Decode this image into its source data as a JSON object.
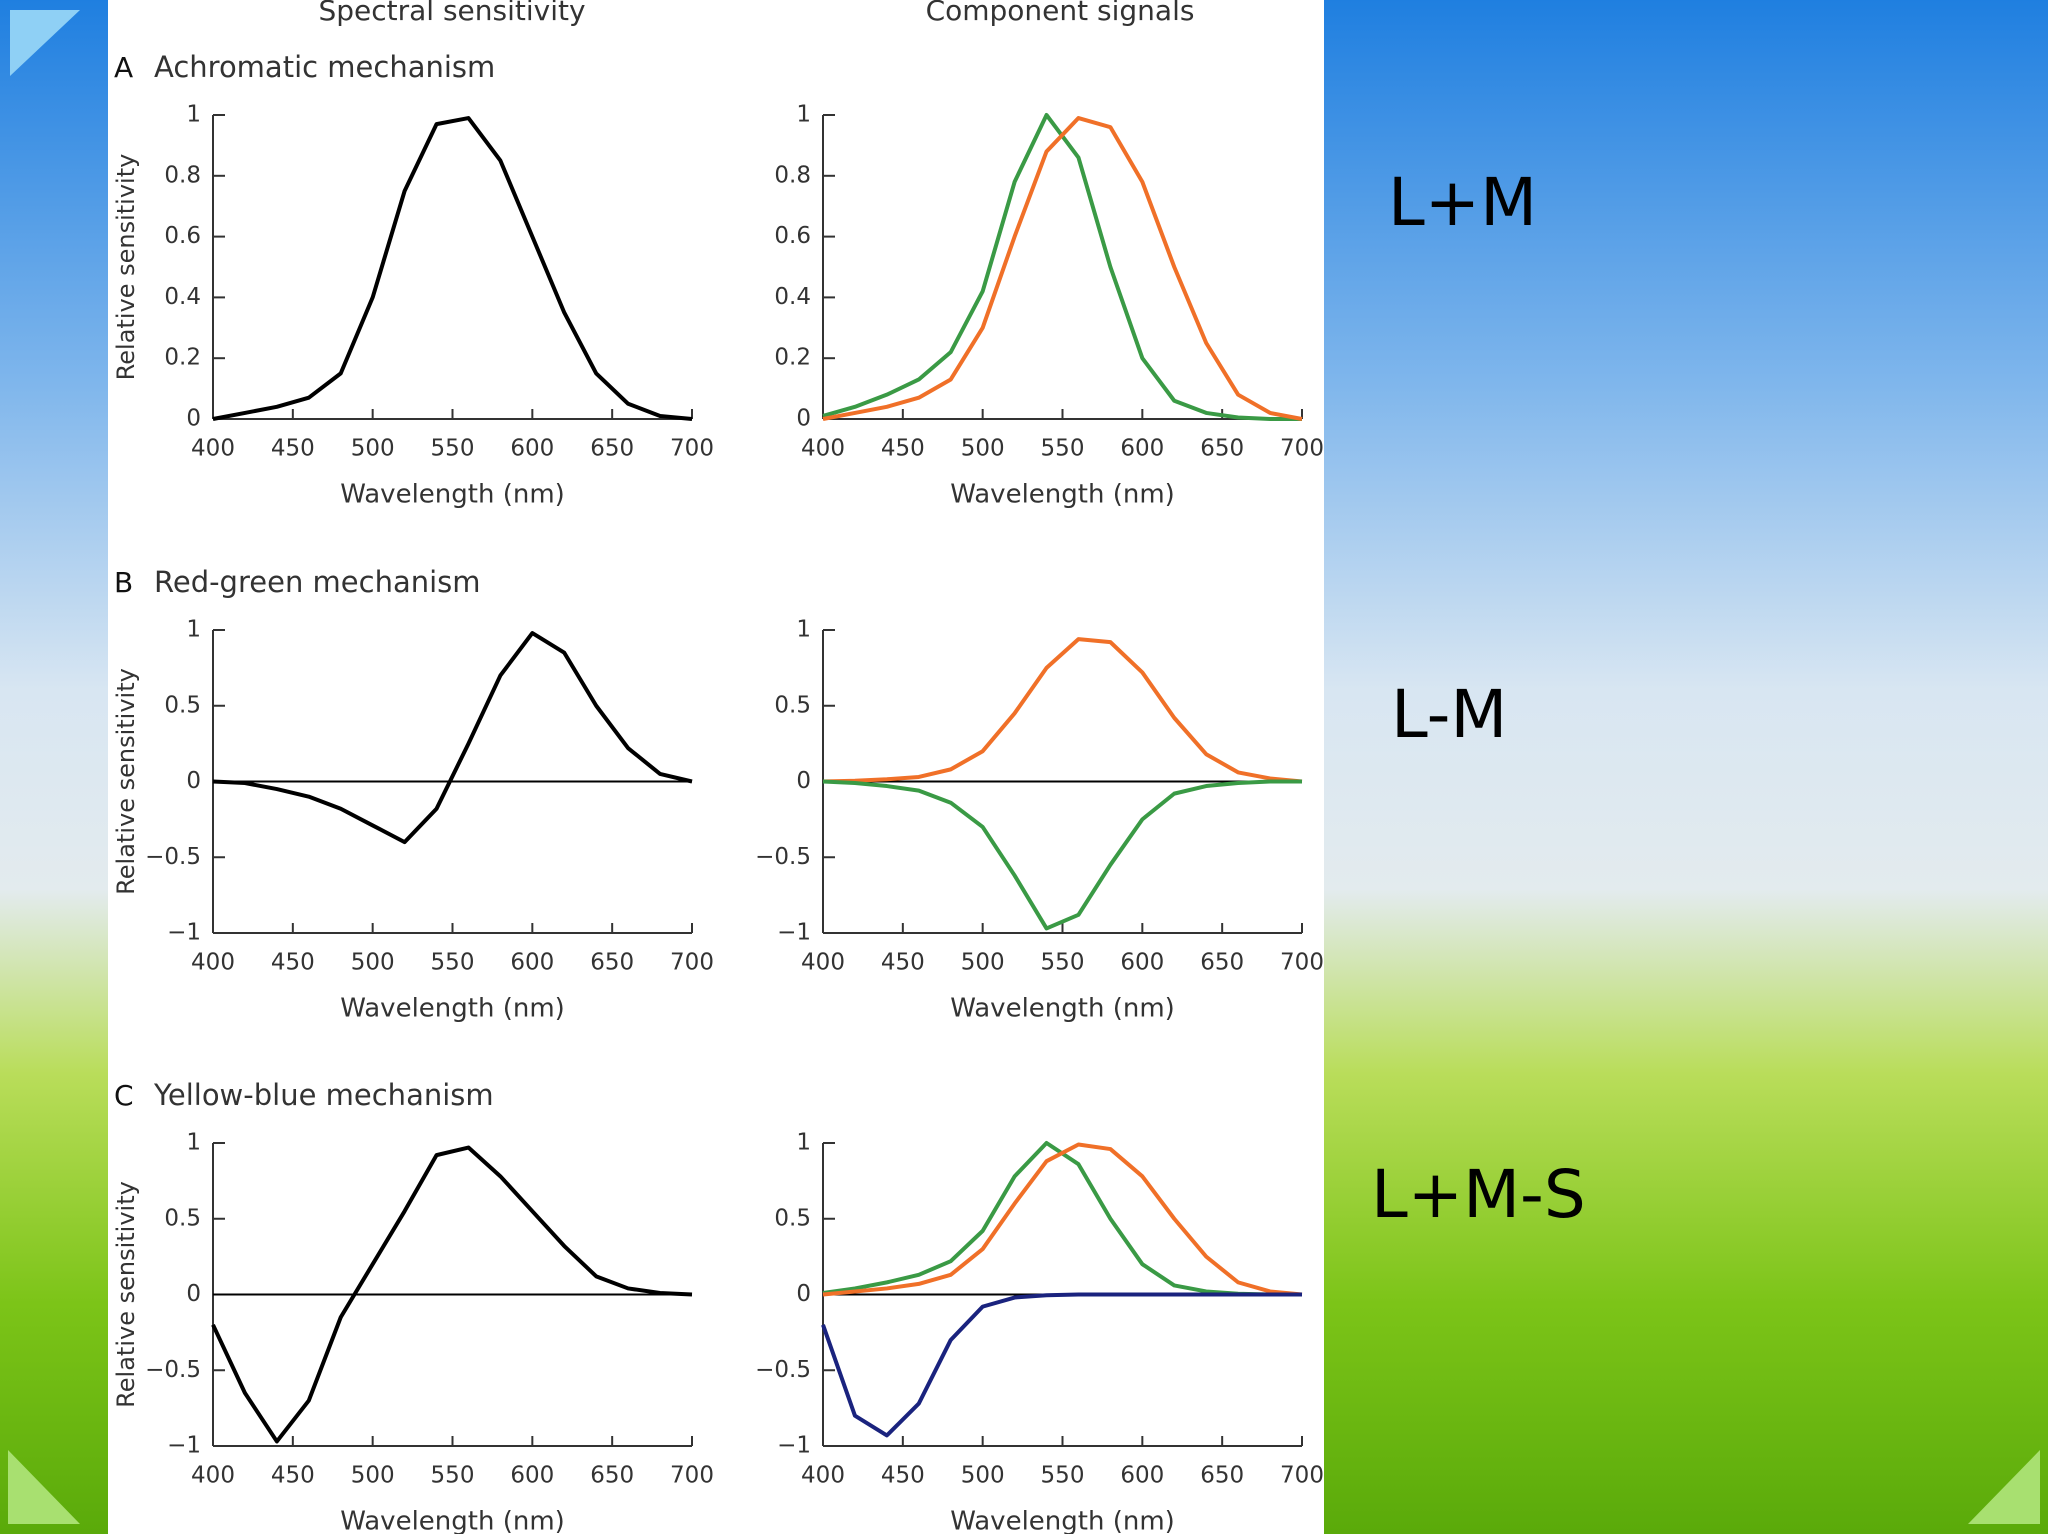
{
  "column_titles": [
    "Spectral sensitivity",
    "Component signals"
  ],
  "side_labels": [
    "L+M",
    "L-M",
    "L+M-S"
  ],
  "chart_data": [
    {
      "type": "line",
      "panel": "A",
      "title": "Achromatic mechanism",
      "ylabel": "Relative sensitivity",
      "xlabel": "Wavelength (nm)",
      "x": [
        400,
        420,
        440,
        460,
        480,
        500,
        520,
        540,
        560,
        580,
        600,
        620,
        640,
        660,
        680,
        700
      ],
      "xlim": [
        400,
        700
      ],
      "xticks": [
        400,
        450,
        500,
        550,
        600,
        650,
        700
      ],
      "ylim": [
        0,
        1
      ],
      "yticks": [
        0,
        0.2,
        0.4,
        0.6,
        0.8,
        1
      ],
      "zero_line": false,
      "series": [
        {
          "color": "#000000",
          "values": [
            0,
            0.02,
            0.04,
            0.07,
            0.15,
            0.4,
            0.75,
            0.97,
            0.99,
            0.85,
            0.6,
            0.35,
            0.15,
            0.05,
            0.01,
            0
          ]
        }
      ]
    },
    {
      "type": "line",
      "xlabel": "Wavelength (nm)",
      "x": [
        400,
        420,
        440,
        460,
        480,
        500,
        520,
        540,
        560,
        580,
        600,
        620,
        640,
        660,
        680,
        700
      ],
      "xlim": [
        400,
        700
      ],
      "xticks": [
        400,
        450,
        500,
        550,
        600,
        650,
        700
      ],
      "ylim": [
        0,
        1
      ],
      "yticks": [
        0,
        0.2,
        0.4,
        0.6,
        0.8,
        1
      ],
      "zero_line": false,
      "series": [
        {
          "color": "#3a9a45",
          "values": [
            0.01,
            0.04,
            0.08,
            0.13,
            0.22,
            0.42,
            0.78,
            1,
            0.86,
            0.5,
            0.2,
            0.06,
            0.02,
            0.005,
            0,
            0
          ]
        },
        {
          "color": "#f07028",
          "values": [
            0,
            0.02,
            0.04,
            0.07,
            0.13,
            0.3,
            0.6,
            0.88,
            0.99,
            0.96,
            0.78,
            0.5,
            0.25,
            0.08,
            0.02,
            0
          ]
        }
      ]
    },
    {
      "type": "line",
      "panel": "B",
      "title": "Red-green mechanism",
      "ylabel": "Relative sensitivity",
      "xlabel": "Wavelength (nm)",
      "x": [
        400,
        420,
        440,
        460,
        480,
        500,
        520,
        540,
        560,
        580,
        600,
        620,
        640,
        660,
        680,
        700
      ],
      "xlim": [
        400,
        700
      ],
      "xticks": [
        400,
        450,
        500,
        550,
        600,
        650,
        700
      ],
      "ylim": [
        -1,
        1
      ],
      "yticks": [
        {
          "value": -1,
          "label": "−1"
        },
        {
          "value": -0.5,
          "label": "−0.5"
        },
        0,
        0.5,
        1
      ],
      "zero_line": true,
      "series": [
        {
          "color": "#000000",
          "values": [
            0,
            -0.01,
            -0.05,
            -0.1,
            -0.18,
            -0.29,
            -0.4,
            -0.18,
            0.25,
            0.7,
            0.98,
            0.85,
            0.5,
            0.22,
            0.05,
            0
          ]
        }
      ]
    },
    {
      "type": "line",
      "xlabel": "Wavelength (nm)",
      "x": [
        400,
        420,
        440,
        460,
        480,
        500,
        520,
        540,
        560,
        580,
        600,
        620,
        640,
        660,
        680,
        700
      ],
      "xlim": [
        400,
        700
      ],
      "xticks": [
        400,
        450,
        500,
        550,
        600,
        650,
        700
      ],
      "ylim": [
        -1,
        1
      ],
      "yticks": [
        {
          "value": -1,
          "label": "−1"
        },
        {
          "value": -0.5,
          "label": "−0.5"
        },
        0,
        0.5,
        1
      ],
      "zero_line": true,
      "series": [
        {
          "color": "#f07028",
          "values": [
            0,
            0.005,
            0.015,
            0.03,
            0.08,
            0.2,
            0.45,
            0.75,
            0.94,
            0.92,
            0.72,
            0.42,
            0.18,
            0.06,
            0.02,
            0
          ]
        },
        {
          "color": "#3a9a45",
          "values": [
            0,
            -0.01,
            -0.03,
            -0.06,
            -0.14,
            -0.3,
            -0.62,
            -0.97,
            -0.88,
            -0.55,
            -0.25,
            -0.08,
            -0.03,
            -0.01,
            0,
            0
          ]
        }
      ]
    },
    {
      "type": "line",
      "panel": "C",
      "title": "Yellow-blue mechanism",
      "ylabel": "Relative sensitivity",
      "xlabel": "Wavelength (nm)",
      "x": [
        400,
        420,
        440,
        460,
        480,
        500,
        520,
        540,
        560,
        580,
        600,
        620,
        640,
        660,
        680,
        700
      ],
      "xlim": [
        400,
        700
      ],
      "xticks": [
        400,
        450,
        500,
        550,
        600,
        650,
        700
      ],
      "ylim": [
        -1,
        1
      ],
      "yticks": [
        {
          "value": -1,
          "label": "−1"
        },
        {
          "value": -0.5,
          "label": "−0.5"
        },
        0,
        0.5,
        1
      ],
      "zero_line": true,
      "series": [
        {
          "color": "#000000",
          "values": [
            -0.2,
            -0.65,
            -0.97,
            -0.7,
            -0.15,
            0.2,
            0.55,
            0.92,
            0.97,
            0.78,
            0.55,
            0.32,
            0.12,
            0.04,
            0.01,
            0
          ]
        }
      ]
    },
    {
      "type": "line",
      "xlabel": "Wavelength (nm)",
      "x": [
        400,
        420,
        440,
        460,
        480,
        500,
        520,
        540,
        560,
        580,
        600,
        620,
        640,
        660,
        680,
        700
      ],
      "xlim": [
        400,
        700
      ],
      "xticks": [
        400,
        450,
        500,
        550,
        600,
        650,
        700
      ],
      "ylim": [
        -1,
        1
      ],
      "yticks": [
        {
          "value": -1,
          "label": "−1"
        },
        {
          "value": -0.5,
          "label": "−0.5"
        },
        0,
        0.5,
        1
      ],
      "zero_line": true,
      "series": [
        {
          "color": "#3a9a45",
          "values": [
            0.01,
            0.04,
            0.08,
            0.13,
            0.22,
            0.42,
            0.78,
            1,
            0.86,
            0.5,
            0.2,
            0.06,
            0.02,
            0.005,
            0,
            0
          ]
        },
        {
          "color": "#f07028",
          "values": [
            0,
            0.02,
            0.04,
            0.07,
            0.13,
            0.3,
            0.6,
            0.88,
            0.99,
            0.96,
            0.78,
            0.5,
            0.25,
            0.08,
            0.02,
            0
          ]
        },
        {
          "color": "#1a237e",
          "values": [
            -0.2,
            -0.8,
            -0.93,
            -0.72,
            -0.3,
            -0.08,
            -0.02,
            -0.005,
            0,
            0,
            0,
            0,
            0,
            0,
            0,
            0
          ]
        }
      ]
    }
  ]
}
